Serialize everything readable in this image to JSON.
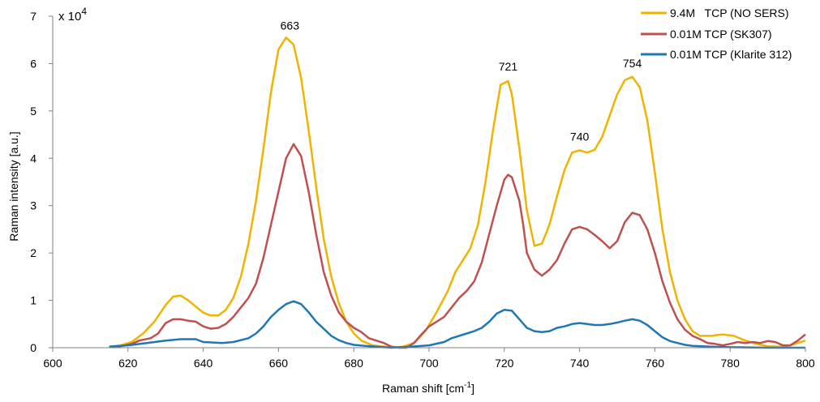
{
  "chart_data": {
    "type": "line",
    "xlabel": "Raman shift [cm",
    "xlabel_sup": "-1",
    "xlabel_end": "]",
    "ylabel": "Raman intensity [a.u.]",
    "y_multiplier": "x 10",
    "y_multiplier_exp": "4",
    "xlim": [
      600,
      800
    ],
    "ylim": [
      0,
      7
    ],
    "xticks": [
      "600",
      "620",
      "640",
      "660",
      "680",
      "700",
      "720",
      "740",
      "760",
      "780",
      "800"
    ],
    "yticks": [
      "0",
      "1",
      "2",
      "3",
      "4",
      "5",
      "6",
      "7"
    ],
    "grid": false,
    "legend_position": "top-right",
    "annotations": [
      {
        "text": "663",
        "x": 663,
        "y": 6.72
      },
      {
        "text": "721",
        "x": 721,
        "y": 5.85
      },
      {
        "text": "740",
        "x": 740,
        "y": 4.37
      },
      {
        "text": "754",
        "x": 754,
        "y": 5.92
      }
    ],
    "series": [
      {
        "name": "9.4M   TCP (NO SERS)",
        "color": "#f0b400",
        "points": [
          [
            615,
            0.02
          ],
          [
            618,
            0.05
          ],
          [
            621,
            0.12
          ],
          [
            624,
            0.3
          ],
          [
            627,
            0.55
          ],
          [
            630,
            0.9
          ],
          [
            632,
            1.08
          ],
          [
            634,
            1.1
          ],
          [
            636,
            1.0
          ],
          [
            638,
            0.87
          ],
          [
            640,
            0.74
          ],
          [
            642,
            0.68
          ],
          [
            644,
            0.68
          ],
          [
            646,
            0.8
          ],
          [
            648,
            1.05
          ],
          [
            650,
            1.5
          ],
          [
            652,
            2.2
          ],
          [
            654,
            3.1
          ],
          [
            656,
            4.2
          ],
          [
            658,
            5.4
          ],
          [
            660,
            6.3
          ],
          [
            662,
            6.55
          ],
          [
            664,
            6.4
          ],
          [
            666,
            5.7
          ],
          [
            668,
            4.6
          ],
          [
            670,
            3.4
          ],
          [
            672,
            2.3
          ],
          [
            674,
            1.5
          ],
          [
            676,
            0.95
          ],
          [
            678,
            0.55
          ],
          [
            680,
            0.3
          ],
          [
            682,
            0.15
          ],
          [
            685,
            0.05
          ],
          [
            688,
            0.02
          ],
          [
            690,
            0.0
          ],
          [
            693,
            0.02
          ],
          [
            696,
            0.1
          ],
          [
            699,
            0.35
          ],
          [
            702,
            0.75
          ],
          [
            705,
            1.2
          ],
          [
            707,
            1.6
          ],
          [
            709,
            1.85
          ],
          [
            711,
            2.1
          ],
          [
            713,
            2.6
          ],
          [
            715,
            3.5
          ],
          [
            717,
            4.6
          ],
          [
            719,
            5.55
          ],
          [
            721,
            5.63
          ],
          [
            722,
            5.35
          ],
          [
            724,
            4.2
          ],
          [
            726,
            2.9
          ],
          [
            728,
            2.15
          ],
          [
            730,
            2.2
          ],
          [
            732,
            2.6
          ],
          [
            734,
            3.2
          ],
          [
            736,
            3.75
          ],
          [
            738,
            4.12
          ],
          [
            740,
            4.17
          ],
          [
            742,
            4.12
          ],
          [
            744,
            4.18
          ],
          [
            746,
            4.45
          ],
          [
            748,
            4.9
          ],
          [
            750,
            5.35
          ],
          [
            752,
            5.65
          ],
          [
            754,
            5.72
          ],
          [
            756,
            5.5
          ],
          [
            758,
            4.8
          ],
          [
            760,
            3.7
          ],
          [
            762,
            2.5
          ],
          [
            764,
            1.6
          ],
          [
            766,
            1.0
          ],
          [
            768,
            0.6
          ],
          [
            770,
            0.35
          ],
          [
            772,
            0.25
          ],
          [
            775,
            0.25
          ],
          [
            778,
            0.28
          ],
          [
            781,
            0.25
          ],
          [
            784,
            0.15
          ],
          [
            787,
            0.08
          ],
          [
            790,
            0.03
          ],
          [
            793,
            0.02
          ],
          [
            796,
            0.05
          ],
          [
            800,
            0.15
          ]
        ]
      },
      {
        "name": "0.01M TCP (SK307)",
        "color": "#c0504d",
        "points": [
          [
            615,
            0.02
          ],
          [
            618,
            0.03
          ],
          [
            621,
            0.08
          ],
          [
            623,
            0.15
          ],
          [
            626,
            0.2
          ],
          [
            628,
            0.3
          ],
          [
            630,
            0.52
          ],
          [
            632,
            0.6
          ],
          [
            634,
            0.6
          ],
          [
            636,
            0.57
          ],
          [
            638,
            0.55
          ],
          [
            640,
            0.45
          ],
          [
            642,
            0.4
          ],
          [
            644,
            0.42
          ],
          [
            646,
            0.5
          ],
          [
            648,
            0.65
          ],
          [
            650,
            0.85
          ],
          [
            652,
            1.05
          ],
          [
            654,
            1.35
          ],
          [
            656,
            1.9
          ],
          [
            658,
            2.6
          ],
          [
            660,
            3.3
          ],
          [
            662,
            4.0
          ],
          [
            664,
            4.3
          ],
          [
            666,
            4.05
          ],
          [
            668,
            3.3
          ],
          [
            670,
            2.4
          ],
          [
            672,
            1.6
          ],
          [
            674,
            1.1
          ],
          [
            676,
            0.75
          ],
          [
            678,
            0.55
          ],
          [
            680,
            0.42
          ],
          [
            682,
            0.33
          ],
          [
            684,
            0.2
          ],
          [
            686,
            0.15
          ],
          [
            688,
            0.1
          ],
          [
            690,
            0.02
          ],
          [
            692,
            0.0
          ],
          [
            694,
            0.0
          ],
          [
            696,
            0.1
          ],
          [
            698,
            0.28
          ],
          [
            700,
            0.45
          ],
          [
            702,
            0.55
          ],
          [
            704,
            0.65
          ],
          [
            706,
            0.85
          ],
          [
            708,
            1.05
          ],
          [
            710,
            1.2
          ],
          [
            712,
            1.4
          ],
          [
            714,
            1.8
          ],
          [
            716,
            2.4
          ],
          [
            718,
            3.0
          ],
          [
            720,
            3.55
          ],
          [
            721,
            3.65
          ],
          [
            722,
            3.6
          ],
          [
            724,
            3.1
          ],
          [
            725,
            2.6
          ],
          [
            726,
            2.0
          ],
          [
            728,
            1.65
          ],
          [
            730,
            1.52
          ],
          [
            732,
            1.65
          ],
          [
            734,
            1.85
          ],
          [
            736,
            2.2
          ],
          [
            738,
            2.5
          ],
          [
            740,
            2.55
          ],
          [
            742,
            2.5
          ],
          [
            744,
            2.38
          ],
          [
            746,
            2.25
          ],
          [
            748,
            2.1
          ],
          [
            750,
            2.25
          ],
          [
            752,
            2.65
          ],
          [
            754,
            2.85
          ],
          [
            756,
            2.8
          ],
          [
            758,
            2.5
          ],
          [
            760,
            2.0
          ],
          [
            762,
            1.4
          ],
          [
            764,
            0.95
          ],
          [
            766,
            0.6
          ],
          [
            768,
            0.38
          ],
          [
            770,
            0.25
          ],
          [
            772,
            0.18
          ],
          [
            774,
            0.1
          ],
          [
            776,
            0.08
          ],
          [
            778,
            0.05
          ],
          [
            780,
            0.08
          ],
          [
            782,
            0.12
          ],
          [
            784,
            0.1
          ],
          [
            786,
            0.12
          ],
          [
            788,
            0.1
          ],
          [
            790,
            0.14
          ],
          [
            792,
            0.12
          ],
          [
            794,
            0.05
          ],
          [
            796,
            0.05
          ],
          [
            798,
            0.15
          ],
          [
            800,
            0.28
          ]
        ]
      },
      {
        "name": "0.01M TCP (Klarite 312)",
        "color": "#1f77b4",
        "points": [
          [
            615,
            0.02
          ],
          [
            620,
            0.05
          ],
          [
            625,
            0.1
          ],
          [
            630,
            0.15
          ],
          [
            634,
            0.18
          ],
          [
            638,
            0.18
          ],
          [
            640,
            0.12
          ],
          [
            645,
            0.1
          ],
          [
            648,
            0.12
          ],
          [
            652,
            0.2
          ],
          [
            654,
            0.3
          ],
          [
            656,
            0.45
          ],
          [
            658,
            0.65
          ],
          [
            660,
            0.8
          ],
          [
            662,
            0.92
          ],
          [
            664,
            0.98
          ],
          [
            666,
            0.92
          ],
          [
            668,
            0.75
          ],
          [
            670,
            0.55
          ],
          [
            672,
            0.4
          ],
          [
            674,
            0.25
          ],
          [
            676,
            0.16
          ],
          [
            678,
            0.1
          ],
          [
            680,
            0.06
          ],
          [
            683,
            0.04
          ],
          [
            686,
            0.02
          ],
          [
            690,
            0.0
          ],
          [
            695,
            0.02
          ],
          [
            700,
            0.05
          ],
          [
            704,
            0.12
          ],
          [
            706,
            0.2
          ],
          [
            710,
            0.3
          ],
          [
            712,
            0.35
          ],
          [
            714,
            0.42
          ],
          [
            716,
            0.55
          ],
          [
            718,
            0.72
          ],
          [
            720,
            0.8
          ],
          [
            722,
            0.78
          ],
          [
            724,
            0.6
          ],
          [
            726,
            0.42
          ],
          [
            728,
            0.35
          ],
          [
            730,
            0.33
          ],
          [
            732,
            0.35
          ],
          [
            734,
            0.42
          ],
          [
            736,
            0.45
          ],
          [
            738,
            0.5
          ],
          [
            740,
            0.52
          ],
          [
            742,
            0.5
          ],
          [
            744,
            0.48
          ],
          [
            746,
            0.48
          ],
          [
            748,
            0.5
          ],
          [
            750,
            0.53
          ],
          [
            752,
            0.57
          ],
          [
            754,
            0.6
          ],
          [
            756,
            0.57
          ],
          [
            758,
            0.48
          ],
          [
            760,
            0.35
          ],
          [
            762,
            0.22
          ],
          [
            764,
            0.14
          ],
          [
            766,
            0.1
          ],
          [
            768,
            0.06
          ],
          [
            770,
            0.04
          ],
          [
            775,
            0.02
          ],
          [
            780,
            0.01
          ],
          [
            790,
            0.0
          ],
          [
            800,
            0.0
          ]
        ]
      }
    ]
  }
}
